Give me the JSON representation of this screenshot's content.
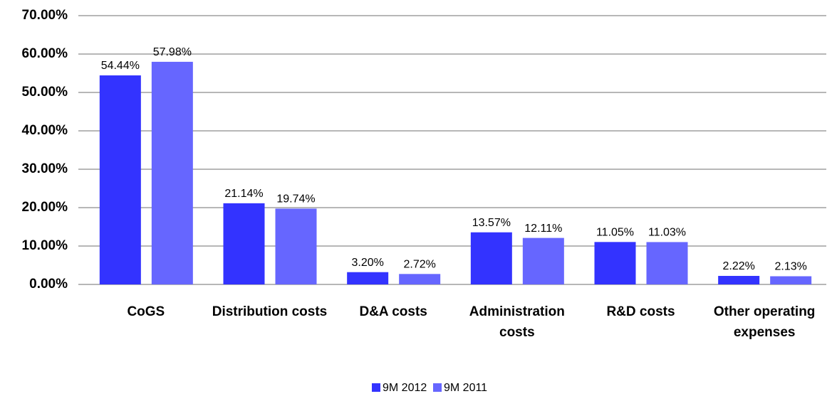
{
  "chart_data": {
    "type": "bar",
    "categories": [
      "CoGS",
      "Distribution costs",
      "D&A costs",
      "Administration costs",
      "R&D costs",
      "Other operating expenses"
    ],
    "series": [
      {
        "name": "9M 2012",
        "color": "#3333ff",
        "values": [
          54.44,
          21.14,
          3.2,
          13.57,
          11.05,
          2.22
        ],
        "value_labels": [
          "54.44%",
          "21.14%",
          "3.20%",
          "13.57%",
          "11.05%",
          "2.22%"
        ]
      },
      {
        "name": "9M 2011",
        "color": "#6666ff",
        "values": [
          57.98,
          19.74,
          2.72,
          12.11,
          11.03,
          2.13
        ],
        "value_labels": [
          "57.98%",
          "19.74%",
          "2.72%",
          "12.11%",
          "11.03%",
          "2.13%"
        ]
      }
    ],
    "ylim": [
      0,
      70
    ],
    "yticks": [
      {
        "value": 0,
        "label": "0.00%"
      },
      {
        "value": 10,
        "label": "10.00%"
      },
      {
        "value": 20,
        "label": "20.00%"
      },
      {
        "value": 30,
        "label": "30.00%"
      },
      {
        "value": 40,
        "label": "40.00%"
      },
      {
        "value": 50,
        "label": "50.00%"
      },
      {
        "value": 60,
        "label": "60.00%"
      },
      {
        "value": 70,
        "label": "70.00%"
      }
    ],
    "grid": true,
    "legend": "bottom"
  }
}
